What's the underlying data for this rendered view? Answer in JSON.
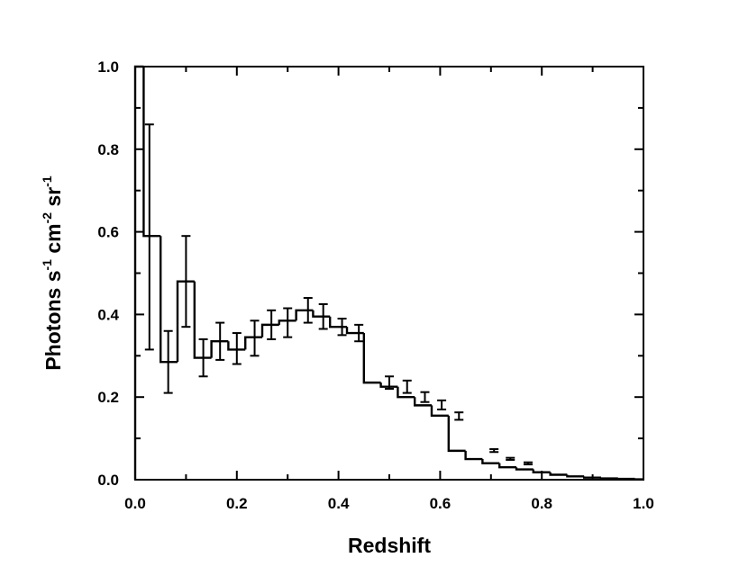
{
  "chart_data": {
    "type": "line",
    "subtype": "step-histogram-with-error-bars",
    "title": "",
    "xlabel": "Redshift",
    "ylabel_parts": [
      "Photons s",
      "-1",
      " cm",
      "-2",
      " sr",
      "-1"
    ],
    "xlim": [
      0.0,
      1.0
    ],
    "ylim": [
      0.0,
      1.0
    ],
    "xticks": [
      "0.0",
      "0.2",
      "0.4",
      "0.6",
      "0.8",
      "1.0"
    ],
    "yticks": [
      "0.0",
      "0.2",
      "0.4",
      "0.6",
      "0.8",
      "1.0"
    ],
    "grid": false,
    "legend": "none",
    "bin_edges": [
      0.0,
      0.0167,
      0.05,
      0.0833,
      0.1167,
      0.15,
      0.1833,
      0.2167,
      0.25,
      0.2833,
      0.3167,
      0.35,
      0.3833,
      0.4167,
      0.45,
      0.4833,
      0.5167,
      0.55,
      0.5833,
      0.6167,
      0.65,
      0.6833,
      0.7167,
      0.75,
      0.7833,
      0.8167,
      0.85,
      0.8833,
      0.9167,
      0.95,
      0.9833,
      1.0
    ],
    "values": [
      1.0,
      0.59,
      0.285,
      0.48,
      0.295,
      0.335,
      0.315,
      0.345,
      0.375,
      0.385,
      0.41,
      0.395,
      0.37,
      0.355,
      0.235,
      0.225,
      0.2,
      0.18,
      0.155,
      0.07,
      0.05,
      0.04,
      0.03,
      0.025,
      0.018,
      0.012,
      0.008,
      0.005,
      0.003,
      0.002,
      0.001
    ],
    "errors": [
      null,
      {
        "x": 0.028,
        "lo": 0.315,
        "hi": 0.86
      },
      {
        "x": 0.065,
        "lo": 0.21,
        "hi": 0.36
      },
      {
        "x": 0.1,
        "lo": 0.37,
        "hi": 0.59
      },
      {
        "x": 0.134,
        "lo": 0.25,
        "hi": 0.34
      },
      {
        "x": 0.167,
        "lo": 0.29,
        "hi": 0.38
      },
      {
        "x": 0.2,
        "lo": 0.28,
        "hi": 0.355
      },
      {
        "x": 0.235,
        "lo": 0.3,
        "hi": 0.385
      },
      {
        "x": 0.268,
        "lo": 0.34,
        "hi": 0.41
      },
      {
        "x": 0.3,
        "lo": 0.345,
        "hi": 0.415
      },
      {
        "x": 0.34,
        "lo": 0.38,
        "hi": 0.44
      },
      {
        "x": 0.37,
        "lo": 0.365,
        "hi": 0.425
      },
      {
        "x": 0.407,
        "lo": 0.35,
        "hi": 0.39
      },
      {
        "x": 0.44,
        "lo": 0.335,
        "hi": 0.375
      },
      {
        "x": 0.5,
        "lo": 0.22,
        "hi": 0.25
      },
      {
        "x": 0.535,
        "lo": 0.21,
        "hi": 0.24
      },
      {
        "x": 0.57,
        "lo": 0.188,
        "hi": 0.212
      },
      {
        "x": 0.603,
        "lo": 0.17,
        "hi": 0.192
      },
      {
        "x": 0.637,
        "lo": 0.145,
        "hi": 0.163
      },
      {
        "x": 0.706,
        "lo": 0.067,
        "hi": 0.074
      },
      {
        "x": 0.738,
        "lo": 0.048,
        "hi": 0.053
      },
      {
        "x": 0.773,
        "lo": 0.037,
        "hi": 0.042
      },
      null,
      null,
      null,
      null,
      null,
      null,
      null,
      null,
      null
    ],
    "colors": {
      "line": "#000000",
      "background": "#ffffff"
    }
  }
}
